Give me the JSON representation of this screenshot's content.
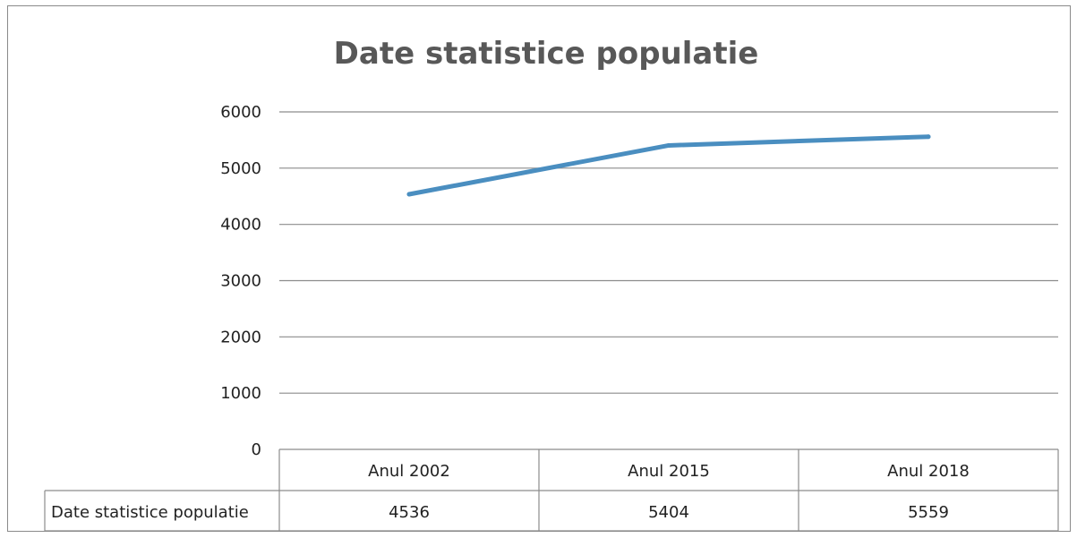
{
  "chart_data": {
    "type": "line",
    "title": "Date statistice populatie",
    "categories": [
      "Anul 2002",
      "Anul 2015",
      "Anul 2018"
    ],
    "series": [
      {
        "name": "Date statistice populatie",
        "values": [
          4536,
          5404,
          5559
        ]
      }
    ],
    "ylim": [
      0,
      6000
    ],
    "yticks": [
      "0",
      "1000",
      "2000",
      "3000",
      "4000",
      "5000",
      "6000"
    ],
    "grid": true,
    "legend": "data table below plot",
    "data_table": {
      "row_label": "Date statistice populatie",
      "values": [
        "4536",
        "5404",
        "5559"
      ]
    },
    "colors": {
      "line": "#4a8ec0",
      "grid": "#8c8c8c"
    }
  }
}
